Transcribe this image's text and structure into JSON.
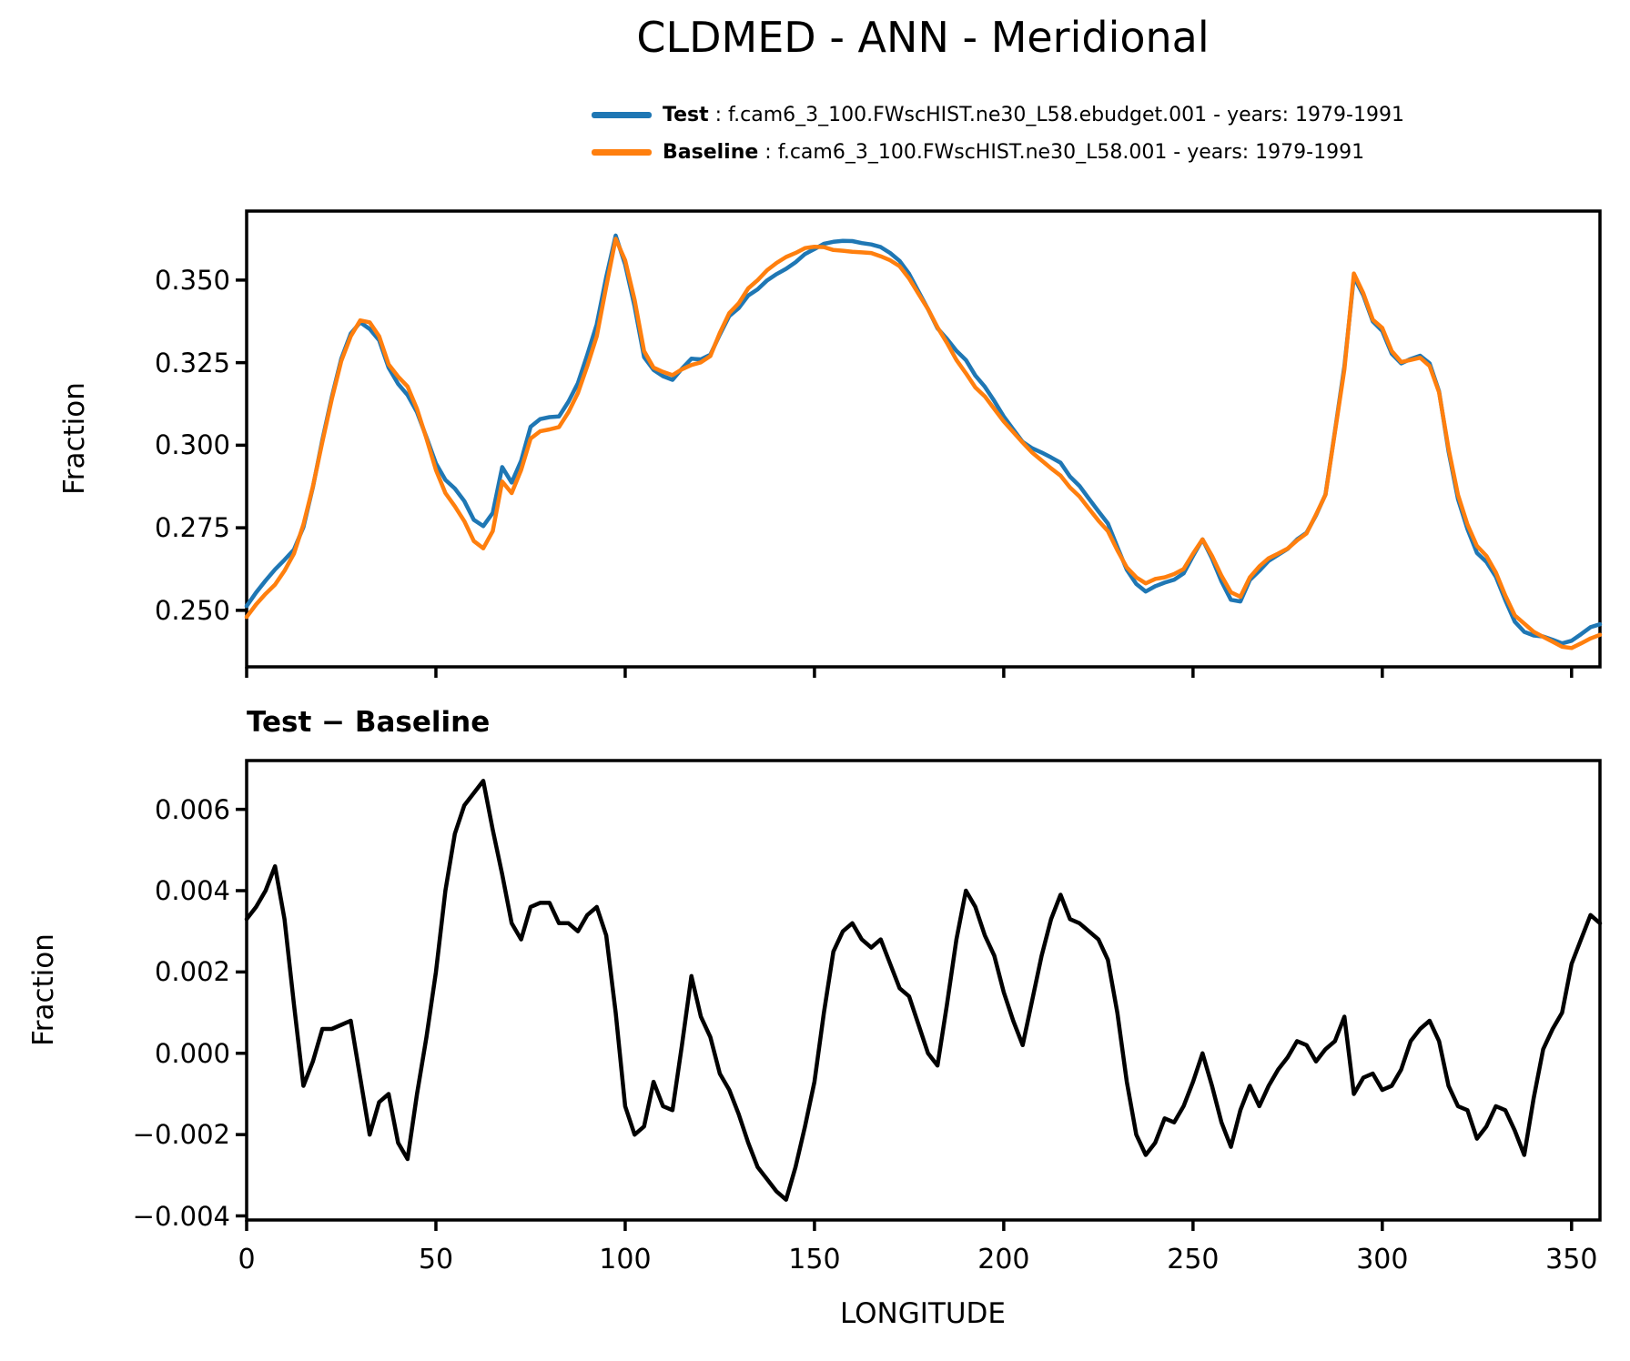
{
  "title": "CLDMED - ANN - Meridional",
  "colors": {
    "test": "#1f77b4",
    "baseline": "#ff7f0e",
    "diff": "#000000",
    "axis": "#000000"
  },
  "legend": {
    "entries": [
      {
        "name": "Test",
        "rest": " : f.cam6_3_100.FWscHIST.ne30_L58.ebudget.001 - years: 1979-1991",
        "color": "#1f77b4"
      },
      {
        "name": "Baseline",
        "rest": " : f.cam6_3_100.FWscHIST.ne30_L58.001 - years: 1979-1991",
        "color": "#ff7f0e"
      }
    ]
  },
  "panels": {
    "top": {
      "ylabel": "Fraction",
      "yticks": [
        {
          "value": 0.35,
          "label": "0.350"
        },
        {
          "value": 0.325,
          "label": "0.325"
        },
        {
          "value": 0.3,
          "label": "0.300"
        },
        {
          "value": 0.275,
          "label": "0.275"
        },
        {
          "value": 0.25,
          "label": "0.250"
        }
      ],
      "xticks": [
        {
          "value": 0
        },
        {
          "value": 50
        },
        {
          "value": 100
        },
        {
          "value": 150
        },
        {
          "value": 200
        },
        {
          "value": 250
        },
        {
          "value": 300
        },
        {
          "value": 350
        }
      ]
    },
    "bottom": {
      "subtitle": "Test − Baseline",
      "ylabel": "Fraction",
      "xlabel": "LONGITUDE",
      "yticks": [
        {
          "value": 0.006,
          "label": "0.006"
        },
        {
          "value": 0.004,
          "label": "0.004"
        },
        {
          "value": 0.002,
          "label": "0.002"
        },
        {
          "value": 0.0,
          "label": "0.000"
        },
        {
          "value": -0.002,
          "label": "−0.002"
        },
        {
          "value": -0.004,
          "label": "−0.004"
        }
      ],
      "xticks": [
        {
          "value": 0,
          "label": "0"
        },
        {
          "value": 50,
          "label": "50"
        },
        {
          "value": 100,
          "label": "100"
        },
        {
          "value": 150,
          "label": "150"
        },
        {
          "value": 200,
          "label": "200"
        },
        {
          "value": 250,
          "label": "250"
        },
        {
          "value": 300,
          "label": "300"
        },
        {
          "value": 350,
          "label": "350"
        }
      ]
    }
  },
  "chart_data": [
    {
      "type": "line",
      "title": "CLDMED - ANN - Meridional",
      "ylabel": "Fraction",
      "xlabel": "",
      "xlim": [
        0,
        357.5
      ],
      "ylim": [
        0.2329,
        0.3709
      ],
      "grid": false,
      "legend_position": "above-right",
      "x": [
        0,
        2.5,
        5,
        7.5,
        10,
        12.5,
        15,
        17.5,
        20,
        22.5,
        25,
        27.5,
        30,
        32.5,
        35,
        37.5,
        40,
        42.5,
        45,
        47.5,
        50,
        52.5,
        55,
        57.5,
        60,
        62.5,
        65,
        67.5,
        70,
        72.5,
        75,
        77.5,
        80,
        82.5,
        85,
        87.5,
        90,
        92.5,
        95,
        97.5,
        100,
        102.5,
        105,
        107.5,
        110,
        112.5,
        115,
        117.5,
        120,
        122.5,
        125,
        127.5,
        130,
        132.5,
        135,
        137.5,
        140,
        142.5,
        145,
        147.5,
        150,
        152.5,
        155,
        157.5,
        160,
        162.5,
        165,
        167.5,
        170,
        172.5,
        175,
        177.5,
        180,
        182.5,
        185,
        187.5,
        190,
        192.5,
        195,
        197.5,
        200,
        202.5,
        205,
        207.5,
        210,
        212.5,
        215,
        217.5,
        220,
        222.5,
        225,
        227.5,
        230,
        232.5,
        235,
        237.5,
        240,
        242.5,
        245,
        247.5,
        250,
        252.5,
        255,
        257.5,
        260,
        262.5,
        265,
        267.5,
        270,
        272.5,
        275,
        277.5,
        280,
        282.5,
        285,
        287.5,
        290,
        292.5,
        295,
        297.5,
        300,
        302.5,
        305,
        307.5,
        310,
        312.5,
        315,
        317.5,
        320,
        322.5,
        325,
        327.5,
        330,
        332.5,
        335,
        337.5,
        340,
        342.5,
        345,
        347.5,
        350,
        352.5,
        355,
        357.5
      ],
      "series": [
        {
          "name": "Test : f.cam6_3_100.FWscHIST.ne30_L58.ebudget.001 - years: 1979-1991",
          "color": "#1f77b4",
          "values": [
            0.2513,
            0.2554,
            0.259,
            0.2624,
            0.2653,
            0.2684,
            0.2752,
            0.2873,
            0.3016,
            0.3146,
            0.3262,
            0.3338,
            0.3372,
            0.3352,
            0.3318,
            0.3235,
            0.3186,
            0.3152,
            0.31,
            0.3024,
            0.2945,
            0.2895,
            0.2869,
            0.2831,
            0.2774,
            0.2755,
            0.2795,
            0.2934,
            0.2887,
            0.2953,
            0.3056,
            0.3079,
            0.3085,
            0.3087,
            0.3132,
            0.3188,
            0.3274,
            0.3366,
            0.3509,
            0.3635,
            0.3547,
            0.342,
            0.3267,
            0.3228,
            0.3209,
            0.3198,
            0.3232,
            0.3262,
            0.326,
            0.3274,
            0.3335,
            0.3391,
            0.3415,
            0.3453,
            0.3472,
            0.3499,
            0.3518,
            0.3534,
            0.3554,
            0.3579,
            0.3594,
            0.361,
            0.3616,
            0.3619,
            0.3618,
            0.3612,
            0.3608,
            0.36,
            0.3582,
            0.3558,
            0.3519,
            0.3465,
            0.3412,
            0.3354,
            0.3322,
            0.3286,
            0.3258,
            0.3211,
            0.3177,
            0.3134,
            0.3087,
            0.3048,
            0.301,
            0.2991,
            0.2978,
            0.2963,
            0.2947,
            0.2905,
            0.2877,
            0.2838,
            0.28,
            0.2763,
            0.2692,
            0.2623,
            0.258,
            0.2557,
            0.2573,
            0.2584,
            0.2593,
            0.2612,
            0.2665,
            0.2715,
            0.2657,
            0.2588,
            0.2532,
            0.2527,
            0.2592,
            0.262,
            0.265,
            0.2668,
            0.2686,
            0.2715,
            0.2735,
            0.2788,
            0.2851,
            0.3043,
            0.3239,
            0.351,
            0.3454,
            0.3375,
            0.3346,
            0.3277,
            0.3248,
            0.3261,
            0.3271,
            0.3248,
            0.3163,
            0.2982,
            0.2837,
            0.2746,
            0.2674,
            0.2647,
            0.2602,
            0.2531,
            0.2466,
            0.2435,
            0.2424,
            0.2421,
            0.2411,
            0.24,
            0.2408,
            0.2428,
            0.2449,
            0.2458
          ]
        },
        {
          "name": "Baseline : f.cam6_3_100.FWscHIST.ne30_L58.001 - years: 1979-1991",
          "color": "#ff7f0e",
          "values": [
            0.248,
            0.2518,
            0.255,
            0.2578,
            0.262,
            0.2672,
            0.276,
            0.2875,
            0.301,
            0.314,
            0.3255,
            0.333,
            0.3378,
            0.3372,
            0.333,
            0.3245,
            0.3208,
            0.3178,
            0.311,
            0.302,
            0.2925,
            0.2855,
            0.2815,
            0.277,
            0.271,
            0.2688,
            0.274,
            0.289,
            0.2855,
            0.2925,
            0.302,
            0.3042,
            0.3048,
            0.3055,
            0.31,
            0.3158,
            0.324,
            0.333,
            0.348,
            0.3625,
            0.356,
            0.344,
            0.3285,
            0.3235,
            0.3222,
            0.3212,
            0.323,
            0.3243,
            0.3251,
            0.327,
            0.334,
            0.34,
            0.343,
            0.3475,
            0.35,
            0.353,
            0.3552,
            0.357,
            0.3582,
            0.3597,
            0.3601,
            0.36,
            0.3591,
            0.3589,
            0.3586,
            0.3584,
            0.3582,
            0.3572,
            0.356,
            0.3542,
            0.3505,
            0.3458,
            0.3412,
            0.3357,
            0.331,
            0.3258,
            0.3218,
            0.3175,
            0.3148,
            0.311,
            0.3072,
            0.304,
            0.3008,
            0.2978,
            0.2954,
            0.293,
            0.2908,
            0.2872,
            0.2845,
            0.2808,
            0.2772,
            0.274,
            0.2682,
            0.263,
            0.26,
            0.2582,
            0.2595,
            0.26,
            0.261,
            0.2625,
            0.2672,
            0.2715,
            0.2665,
            0.2605,
            0.2555,
            0.2541,
            0.26,
            0.2633,
            0.2658,
            0.2672,
            0.2687,
            0.2712,
            0.2733,
            0.279,
            0.285,
            0.304,
            0.323,
            0.352,
            0.346,
            0.338,
            0.3355,
            0.3285,
            0.3252,
            0.3258,
            0.3265,
            0.324,
            0.316,
            0.299,
            0.285,
            0.276,
            0.2695,
            0.2665,
            0.2615,
            0.2545,
            0.2485,
            0.246,
            0.2435,
            0.242,
            0.2405,
            0.239,
            0.2386,
            0.24,
            0.2415,
            0.2426
          ]
        }
      ]
    },
    {
      "type": "line",
      "title": "Test − Baseline",
      "ylabel": "Fraction",
      "xlabel": "LONGITUDE",
      "xlim": [
        0,
        357.5
      ],
      "ylim": [
        -0.0041,
        0.0072
      ],
      "grid": false,
      "x_same_as_panel_0": true,
      "series": [
        {
          "name": "Test − Baseline",
          "color": "#000000",
          "values": [
            0.0033,
            0.0036,
            0.004,
            0.0046,
            0.0033,
            0.0012,
            -0.0008,
            -0.0002,
            0.0006,
            0.0006,
            0.0007,
            0.0008,
            -0.0006,
            -0.002,
            -0.0012,
            -0.001,
            -0.0022,
            -0.0026,
            -0.001,
            0.0004,
            0.002,
            0.004,
            0.0054,
            0.0061,
            0.0064,
            0.0067,
            0.0055,
            0.0044,
            0.0032,
            0.0028,
            0.0036,
            0.0037,
            0.0037,
            0.0032,
            0.0032,
            0.003,
            0.0034,
            0.0036,
            0.0029,
            0.001,
            -0.0013,
            -0.002,
            -0.0018,
            -0.0007,
            -0.0013,
            -0.0014,
            0.0002,
            0.0019,
            0.0009,
            0.0004,
            -0.0005,
            -0.0009,
            -0.0015,
            -0.0022,
            -0.0028,
            -0.0031,
            -0.0034,
            -0.0036,
            -0.0028,
            -0.0018,
            -0.0007,
            0.001,
            0.0025,
            0.003,
            0.0032,
            0.0028,
            0.0026,
            0.0028,
            0.0022,
            0.0016,
            0.0014,
            0.0007,
            0.0,
            -0.0003,
            0.0012,
            0.0028,
            0.004,
            0.0036,
            0.0029,
            0.0024,
            0.0015,
            0.0008,
            0.0002,
            0.0013,
            0.0024,
            0.0033,
            0.0039,
            0.0033,
            0.0032,
            0.003,
            0.0028,
            0.0023,
            0.001,
            -0.0007,
            -0.002,
            -0.0025,
            -0.0022,
            -0.0016,
            -0.0017,
            -0.0013,
            -0.0007,
            0.0,
            -0.0008,
            -0.0017,
            -0.0023,
            -0.0014,
            -0.0008,
            -0.0013,
            -0.0008,
            -0.0004,
            -0.0001,
            0.0003,
            0.0002,
            -0.0002,
            0.0001,
            0.0003,
            0.0009,
            -0.001,
            -0.0006,
            -0.0005,
            -0.0009,
            -0.0008,
            -0.0004,
            0.0003,
            0.0006,
            0.0008,
            0.0003,
            -0.0008,
            -0.0013,
            -0.0014,
            -0.0021,
            -0.0018,
            -0.0013,
            -0.0014,
            -0.0019,
            -0.0025,
            -0.0011,
            0.0001,
            0.0006,
            0.001,
            0.0022,
            0.0028,
            0.0034,
            0.0032
          ]
        }
      ]
    }
  ]
}
